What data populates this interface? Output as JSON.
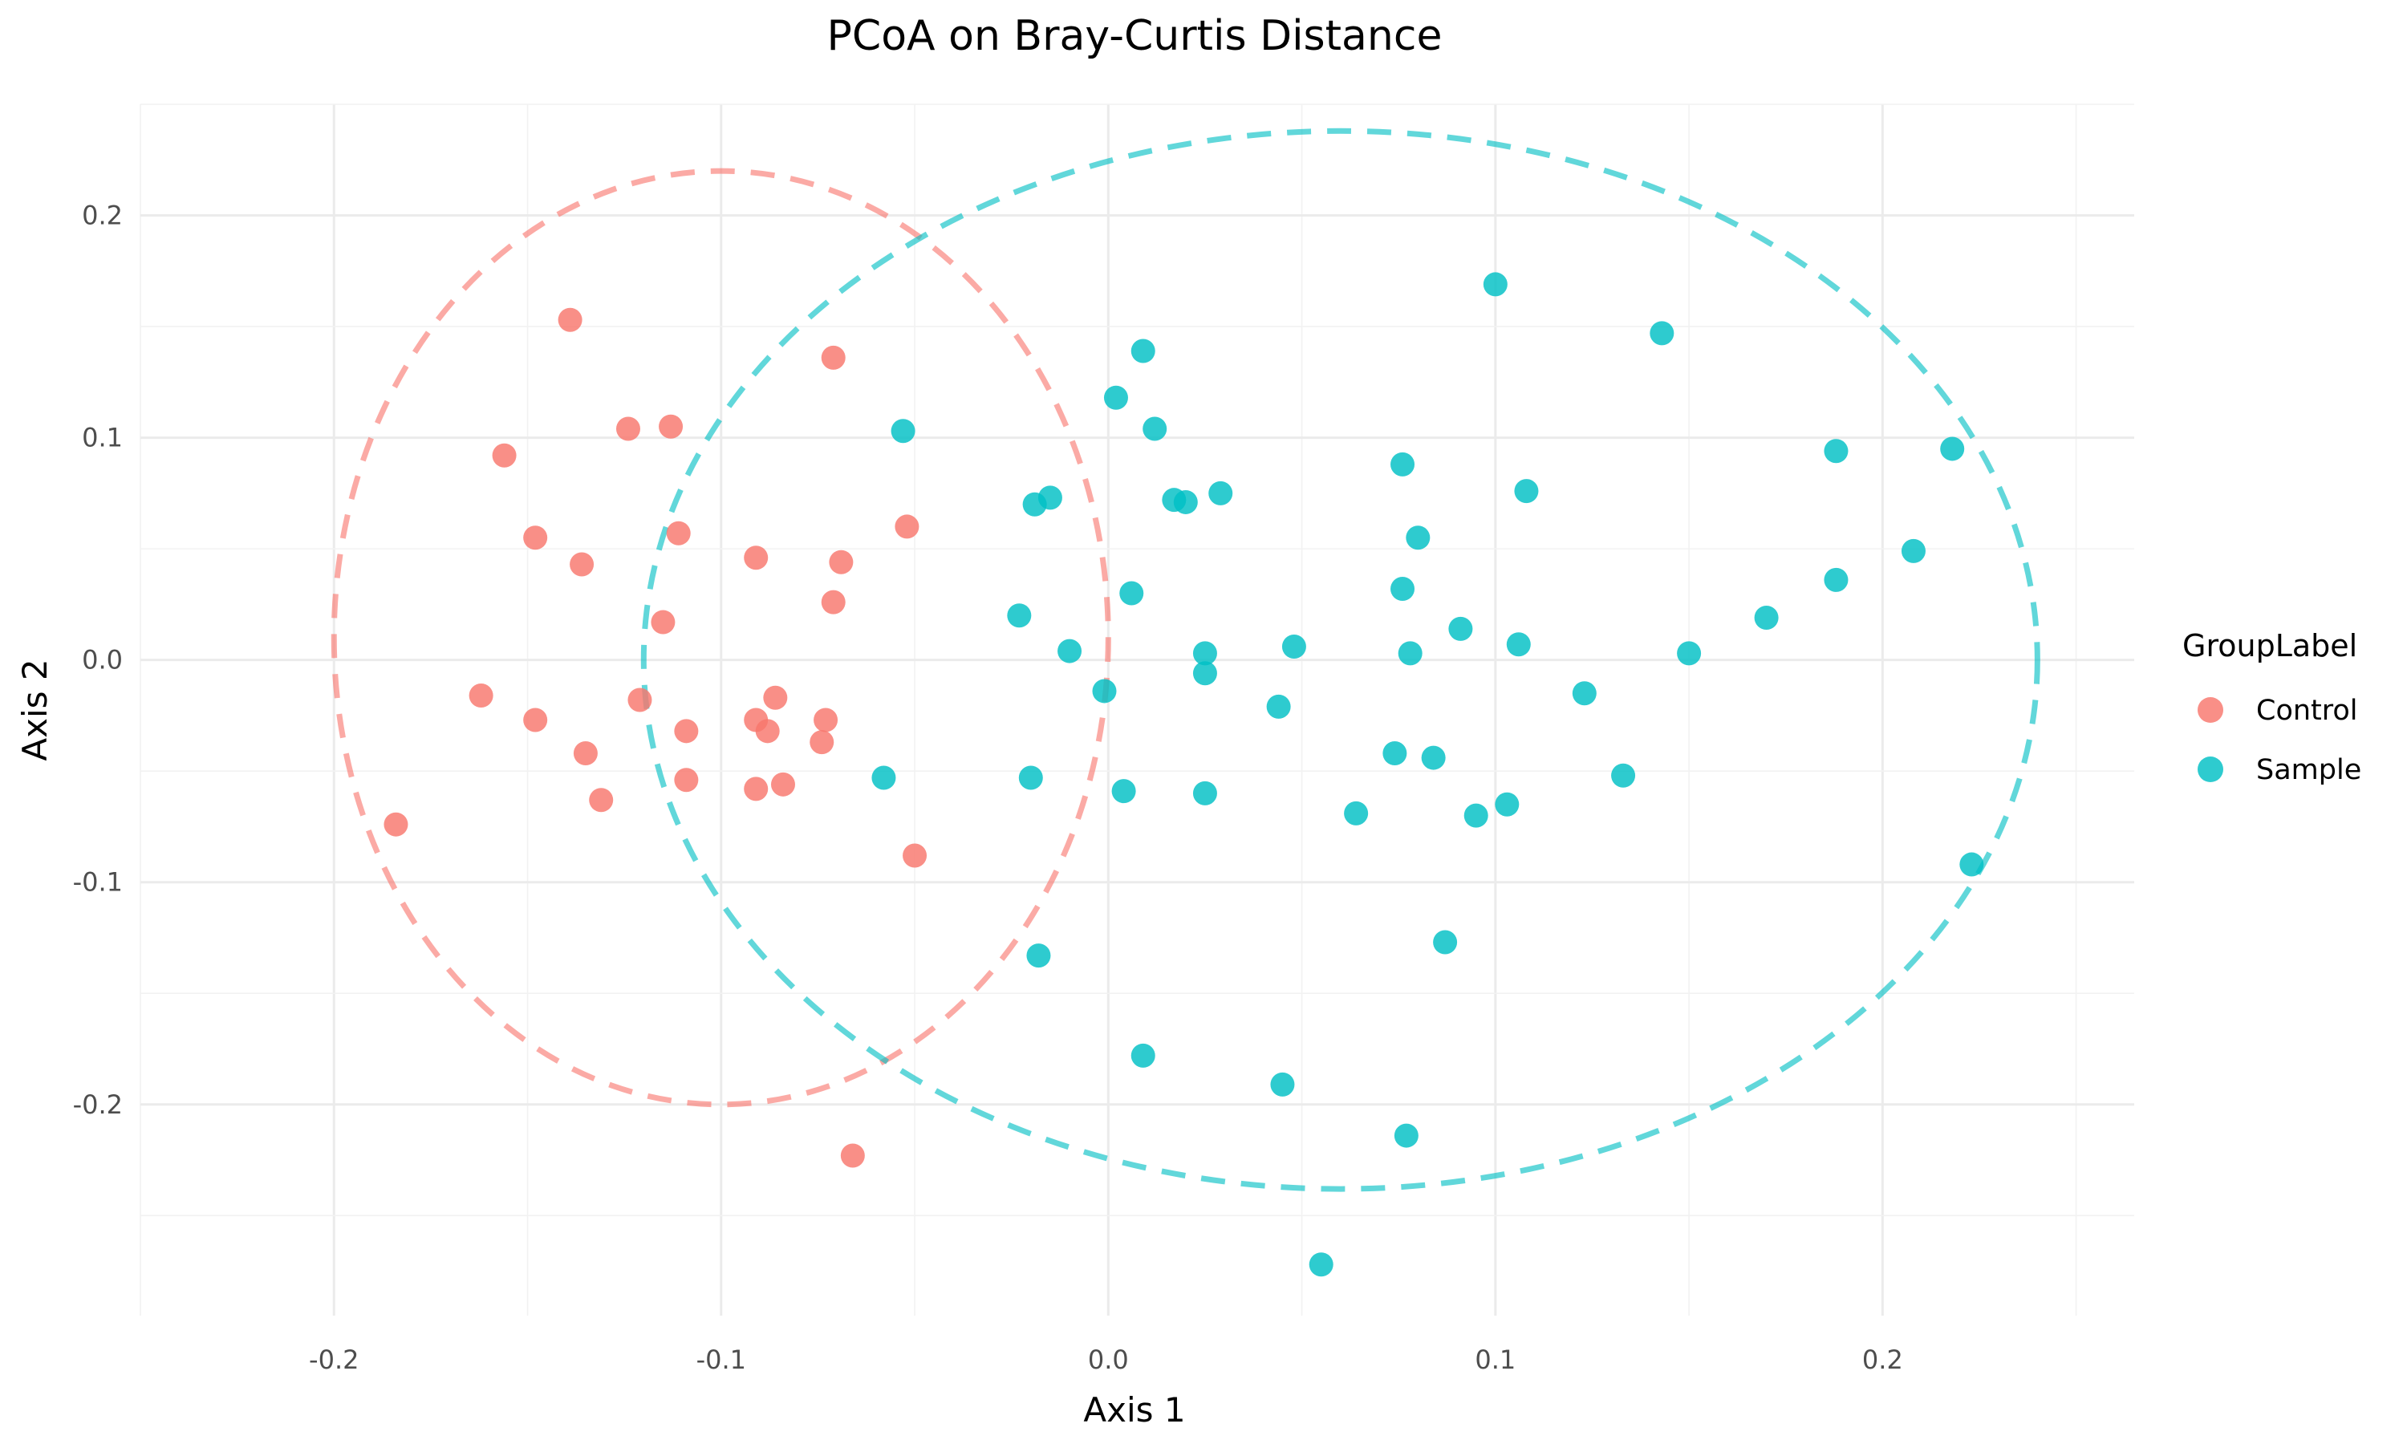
{
  "chart_data": {
    "type": "scatter",
    "title": "PCoA on Bray-Curtis Distance",
    "xlabel": "Axis 1",
    "ylabel": "Axis 2",
    "xlim": [
      -0.25,
      0.265
    ],
    "ylim": [
      -0.295,
      0.25
    ],
    "xticks": [
      -0.2,
      -0.1,
      0.0,
      0.1,
      0.2
    ],
    "xtick_labels": [
      "-0.2",
      "-0.1",
      "0.0",
      "0.1",
      "0.2"
    ],
    "yticks": [
      -0.2,
      -0.1,
      0.0,
      0.1,
      0.2
    ],
    "ytick_labels": [
      "-0.2",
      "-0.1",
      "0.0",
      "0.1",
      "0.2"
    ],
    "grid": true,
    "legend": {
      "title": "GroupLabel",
      "position": "right"
    },
    "series": [
      {
        "name": "Control",
        "color": "#F8766D",
        "ellipse": {
          "center": [
            -0.1,
            0.01
          ],
          "radius_x": 0.1,
          "radius_y": 0.21
        },
        "points": [
          [
            -0.139,
            0.153
          ],
          [
            -0.156,
            0.092
          ],
          [
            -0.124,
            0.104
          ],
          [
            -0.113,
            0.105
          ],
          [
            -0.071,
            0.136
          ],
          [
            -0.148,
            0.055
          ],
          [
            -0.136,
            0.043
          ],
          [
            -0.111,
            0.057
          ],
          [
            -0.091,
            0.046
          ],
          [
            -0.069,
            0.044
          ],
          [
            -0.052,
            0.06
          ],
          [
            -0.115,
            0.017
          ],
          [
            -0.071,
            0.026
          ],
          [
            -0.162,
            -0.016
          ],
          [
            -0.148,
            -0.027
          ],
          [
            -0.121,
            -0.018
          ],
          [
            -0.086,
            -0.017
          ],
          [
            -0.091,
            -0.027
          ],
          [
            -0.073,
            -0.027
          ],
          [
            -0.109,
            -0.032
          ],
          [
            -0.088,
            -0.032
          ],
          [
            -0.074,
            -0.037
          ],
          [
            -0.135,
            -0.042
          ],
          [
            -0.109,
            -0.054
          ],
          [
            -0.091,
            -0.058
          ],
          [
            -0.084,
            -0.056
          ],
          [
            -0.131,
            -0.063
          ],
          [
            -0.184,
            -0.074
          ],
          [
            -0.05,
            -0.088
          ],
          [
            -0.066,
            -0.223
          ]
        ]
      },
      {
        "name": "Sample",
        "color": "#00BFC4",
        "ellipse": {
          "center": [
            0.06,
            0.0
          ],
          "radius_x": 0.18,
          "radius_y": 0.238
        },
        "points": [
          [
            0.1,
            0.169
          ],
          [
            0.143,
            0.147
          ],
          [
            0.009,
            0.139
          ],
          [
            0.002,
            0.118
          ],
          [
            0.012,
            0.104
          ],
          [
            -0.053,
            0.103
          ],
          [
            0.076,
            0.088
          ],
          [
            0.188,
            0.094
          ],
          [
            0.218,
            0.095
          ],
          [
            0.108,
            0.076
          ],
          [
            0.029,
            0.075
          ],
          [
            -0.015,
            0.073
          ],
          [
            -0.019,
            0.07
          ],
          [
            0.017,
            0.072
          ],
          [
            0.02,
            0.071
          ],
          [
            0.08,
            0.055
          ],
          [
            0.208,
            0.049
          ],
          [
            0.006,
            0.03
          ],
          [
            0.076,
            0.032
          ],
          [
            0.188,
            0.036
          ],
          [
            -0.023,
            0.02
          ],
          [
            0.17,
            0.019
          ],
          [
            0.091,
            0.014
          ],
          [
            -0.01,
            0.004
          ],
          [
            0.025,
            0.003
          ],
          [
            0.048,
            0.006
          ],
          [
            0.078,
            0.003
          ],
          [
            0.106,
            0.007
          ],
          [
            0.15,
            0.003
          ],
          [
            0.025,
            -0.006
          ],
          [
            -0.001,
            -0.014
          ],
          [
            0.044,
            -0.021
          ],
          [
            0.123,
            -0.015
          ],
          [
            0.074,
            -0.042
          ],
          [
            0.084,
            -0.044
          ],
          [
            -0.058,
            -0.053
          ],
          [
            -0.02,
            -0.053
          ],
          [
            0.004,
            -0.059
          ],
          [
            0.025,
            -0.06
          ],
          [
            0.133,
            -0.052
          ],
          [
            0.064,
            -0.069
          ],
          [
            0.095,
            -0.07
          ],
          [
            0.103,
            -0.065
          ],
          [
            0.223,
            -0.092
          ],
          [
            0.087,
            -0.127
          ],
          [
            -0.018,
            -0.133
          ],
          [
            0.009,
            -0.178
          ],
          [
            0.045,
            -0.191
          ],
          [
            0.077,
            -0.214
          ],
          [
            0.055,
            -0.272
          ]
        ]
      }
    ]
  }
}
